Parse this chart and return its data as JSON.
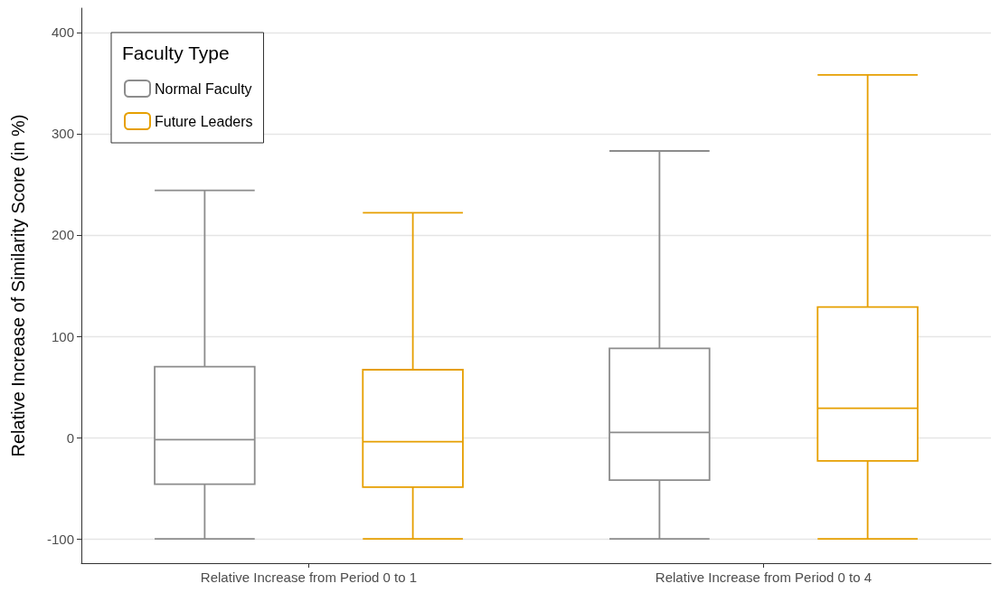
{
  "chart_data": {
    "type": "box",
    "ylabel": "Relative Increase of Similarity Score (in %)",
    "legend_title": "Faculty Type",
    "categories": [
      "Relative Increase from Period 0 to 1",
      "Relative Increase from Period 0 to 4"
    ],
    "series": [
      {
        "name": "Normal Faculty",
        "color": "#8c8c8c",
        "boxes": [
          {
            "low": -100,
            "q1": -46,
            "median": -2,
            "q3": 70,
            "high": 244
          },
          {
            "low": -100,
            "q1": -42,
            "median": 5,
            "q3": 88,
            "high": 283
          }
        ]
      },
      {
        "name": "Future Leaders",
        "color": "#e69f00",
        "boxes": [
          {
            "low": -100,
            "q1": -49,
            "median": -4,
            "q3": 67,
            "high": 222
          },
          {
            "low": -100,
            "q1": -23,
            "median": 29,
            "q3": 129,
            "high": 358
          }
        ]
      }
    ],
    "ylim": [
      -124,
      424
    ],
    "yticks": [
      -100,
      0,
      100,
      200,
      300,
      400
    ],
    "grid": true,
    "legend": "top left"
  }
}
